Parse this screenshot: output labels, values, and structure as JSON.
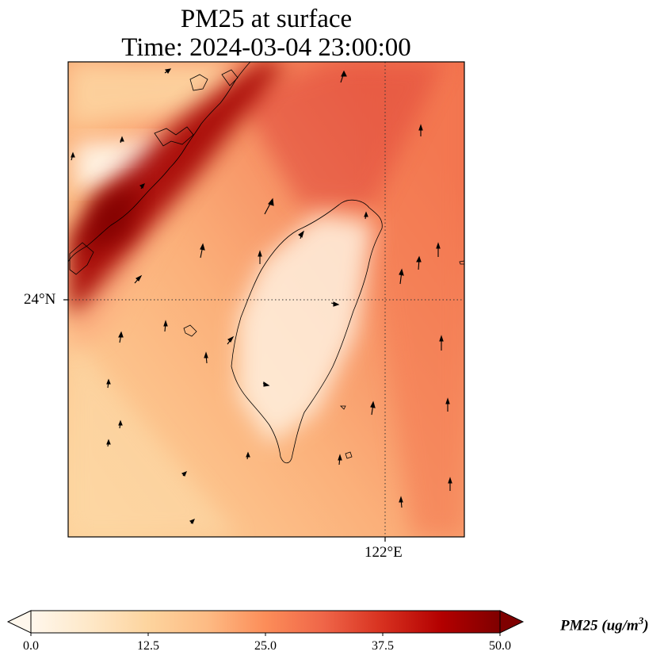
{
  "title": {
    "line1": "PM25 at surface",
    "line2": "Time: 2024-03-04 23:00:00"
  },
  "map": {
    "lat_tick_label": "24°N",
    "lon_tick_label": "122°E",
    "gridline_style": "dotted"
  },
  "colorbar": {
    "label_main": "PM25 (ug/m",
    "label_sup": "3",
    "label_close": ")",
    "min": 0.0,
    "max": 50.0,
    "extend": "both",
    "ticks": [
      "0.0",
      "12.5",
      "25.0",
      "37.5",
      "50.0"
    ],
    "colormap": "OrRd",
    "colors": [
      "#fff7ec",
      "#fee8c8",
      "#fdd49e",
      "#fdbb84",
      "#fc8d59",
      "#ef6548",
      "#d7301f",
      "#b30000",
      "#7f0000"
    ]
  }
}
